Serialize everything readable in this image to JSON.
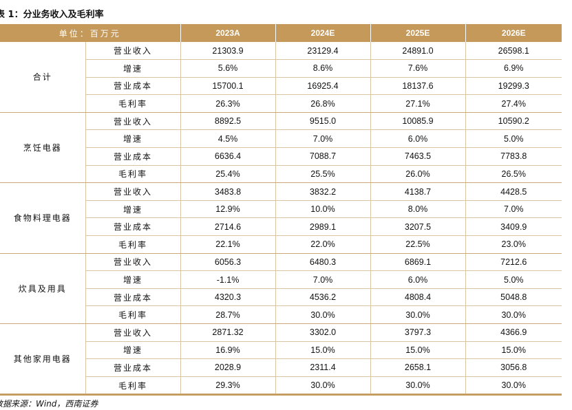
{
  "title": "表 1：分业务收入及毛利率",
  "header": {
    "unit": "单位：百万元",
    "years": [
      "2023A",
      "2024E",
      "2025E",
      "2026E"
    ]
  },
  "groups": [
    {
      "name": "合计",
      "rows": [
        {
          "metric": "营业收入",
          "values": [
            "21303.9",
            "23129.4",
            "24891.0",
            "26598.1"
          ]
        },
        {
          "metric": "增速",
          "values": [
            "5.6%",
            "8.6%",
            "7.6%",
            "6.9%"
          ]
        },
        {
          "metric": "营业成本",
          "values": [
            "15700.1",
            "16925.4",
            "18137.6",
            "19299.3"
          ]
        },
        {
          "metric": "毛利率",
          "values": [
            "26.3%",
            "26.8%",
            "27.1%",
            "27.4%"
          ]
        }
      ]
    },
    {
      "name": "烹饪电器",
      "rows": [
        {
          "metric": "营业收入",
          "values": [
            "8892.5",
            "9515.0",
            "10085.9",
            "10590.2"
          ]
        },
        {
          "metric": "增速",
          "values": [
            "4.5%",
            "7.0%",
            "6.0%",
            "5.0%"
          ]
        },
        {
          "metric": "营业成本",
          "values": [
            "6636.4",
            "7088.7",
            "7463.5",
            "7783.8"
          ]
        },
        {
          "metric": "毛利率",
          "values": [
            "25.4%",
            "25.5%",
            "26.0%",
            "26.5%"
          ]
        }
      ]
    },
    {
      "name": "食物料理电器",
      "rows": [
        {
          "metric": "营业收入",
          "values": [
            "3483.8",
            "3832.2",
            "4138.7",
            "4428.5"
          ]
        },
        {
          "metric": "增速",
          "values": [
            "12.9%",
            "10.0%",
            "8.0%",
            "7.0%"
          ]
        },
        {
          "metric": "营业成本",
          "values": [
            "2714.6",
            "2989.1",
            "3207.5",
            "3409.9"
          ]
        },
        {
          "metric": "毛利率",
          "values": [
            "22.1%",
            "22.0%",
            "22.5%",
            "23.0%"
          ]
        }
      ]
    },
    {
      "name": "炊具及用具",
      "rows": [
        {
          "metric": "营业收入",
          "values": [
            "6056.3",
            "6480.3",
            "6869.1",
            "7212.6"
          ]
        },
        {
          "metric": "增速",
          "values": [
            "-1.1%",
            "7.0%",
            "6.0%",
            "5.0%"
          ]
        },
        {
          "metric": "营业成本",
          "values": [
            "4320.3",
            "4536.2",
            "4808.4",
            "5048.8"
          ]
        },
        {
          "metric": "毛利率",
          "values": [
            "28.7%",
            "30.0%",
            "30.0%",
            "30.0%"
          ]
        }
      ]
    },
    {
      "name": "其他家用电器",
      "rows": [
        {
          "metric": "营业收入",
          "values": [
            "2871.32",
            "3302.0",
            "3797.3",
            "4366.9"
          ]
        },
        {
          "metric": "增速",
          "values": [
            "16.9%",
            "15.0%",
            "15.0%",
            "15.0%"
          ]
        },
        {
          "metric": "营业成本",
          "values": [
            "2028.9",
            "2311.4",
            "2658.1",
            "3056.8"
          ]
        },
        {
          "metric": "毛利率",
          "values": [
            "29.3%",
            "30.0%",
            "30.0%",
            "30.0%"
          ]
        }
      ]
    }
  ],
  "source": "数据来源：Wind，西南证券"
}
